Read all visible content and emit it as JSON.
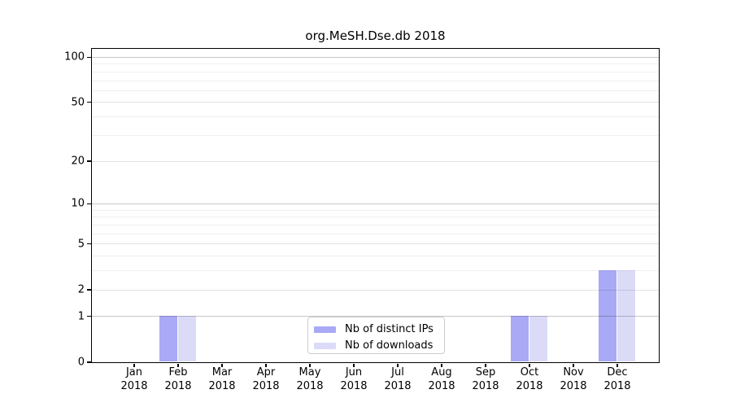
{
  "chart_data": {
    "type": "bar",
    "title": "org.MeSH.Dse.db 2018",
    "x_tick_labels": [
      [
        "Jan",
        "2018"
      ],
      [
        "Feb",
        "2018"
      ],
      [
        "Mar",
        "2018"
      ],
      [
        "Apr",
        "2018"
      ],
      [
        "May",
        "2018"
      ],
      [
        "Jun",
        "2018"
      ],
      [
        "Jul",
        "2018"
      ],
      [
        "Aug",
        "2018"
      ],
      [
        "Sep",
        "2018"
      ],
      [
        "Oct",
        "2018"
      ],
      [
        "Nov",
        "2018"
      ],
      [
        "Dec",
        "2018"
      ]
    ],
    "series": [
      {
        "name": "Nb of distinct IPs",
        "color": "#a9a9f5",
        "values": [
          0,
          1,
          0,
          0,
          0,
          0,
          0,
          0,
          0,
          1,
          0,
          3
        ]
      },
      {
        "name": "Nb of downloads",
        "color": "#dbdbf8",
        "values": [
          0,
          1,
          0,
          0,
          0,
          0,
          0,
          0,
          0,
          1,
          0,
          3
        ]
      }
    ],
    "yscale": "log1p",
    "ylim": [
      0,
      113.6
    ],
    "y_tick_values": [
      0,
      1,
      2,
      5,
      10,
      20,
      50,
      100
    ],
    "y_minor_gridlines": [
      3,
      4,
      6,
      7,
      8,
      9,
      30,
      40,
      60,
      70,
      80,
      90
    ],
    "grid": true,
    "legend_position": "lower center"
  }
}
